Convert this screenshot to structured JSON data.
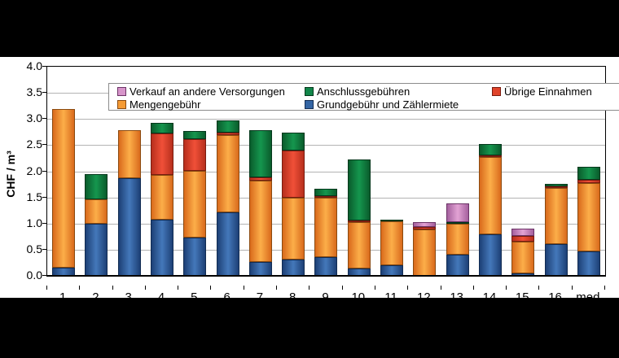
{
  "figure": {
    "y_axis_title": "CHF / m³"
  },
  "chart_data": {
    "type": "bar",
    "stacked": true,
    "title": "",
    "xlabel": "",
    "ylabel": "CHF / m³",
    "ylim": [
      0,
      4.0
    ],
    "ytick_step": 0.5,
    "grid": true,
    "legend_position": "top-inside",
    "categories": [
      "1",
      "2",
      "3",
      "4",
      "5",
      "6",
      "7",
      "8",
      "9",
      "10",
      "11",
      "12",
      "13",
      "14",
      "15",
      "16",
      "med"
    ],
    "series": [
      {
        "name": "Grundgebühr und Zählermiete",
        "key": "blue",
        "color": "#3465a4",
        "values": [
          0.15,
          1.0,
          1.87,
          1.07,
          0.73,
          1.21,
          0.27,
          0.31,
          0.36,
          0.14,
          0.21,
          0,
          0.4,
          0.8,
          0.05,
          0.61,
          0.46
        ]
      },
      {
        "name": "Mengengebühr",
        "key": "orange",
        "color": "#f59b35",
        "values": [
          3.04,
          0.47,
          0.91,
          0.86,
          1.28,
          1.49,
          1.55,
          1.18,
          1.13,
          0.88,
          0.83,
          0.89,
          0.6,
          1.48,
          0.61,
          1.07,
          1.32
        ]
      },
      {
        "name": "Übrige Einnahmen",
        "key": "red",
        "color": "#e0432a",
        "values": [
          0,
          0,
          0,
          0.79,
          0.61,
          0.04,
          0.07,
          0.91,
          0.04,
          0.03,
          0,
          0.04,
          0,
          0.03,
          0.1,
          0.04,
          0.05
        ]
      },
      {
        "name": "Anschlussgebühren",
        "key": "green",
        "color": "#12864a",
        "values": [
          0,
          0.47,
          0,
          0.2,
          0.15,
          0.24,
          0.89,
          0.34,
          0.13,
          1.18,
          0.04,
          0,
          0.03,
          0.21,
          0,
          0.04,
          0.25
        ]
      },
      {
        "name": "Verkauf an andere Versorgungen",
        "key": "pink",
        "color": "#d795ca",
        "values": [
          0,
          0,
          0,
          0,
          0,
          0,
          0,
          0,
          0,
          0,
          0,
          0.1,
          0.36,
          0,
          0.15,
          0,
          0
        ]
      }
    ],
    "legend_rows": [
      [
        "pink",
        "green",
        "red"
      ],
      [
        "orange",
        "blue"
      ]
    ]
  }
}
